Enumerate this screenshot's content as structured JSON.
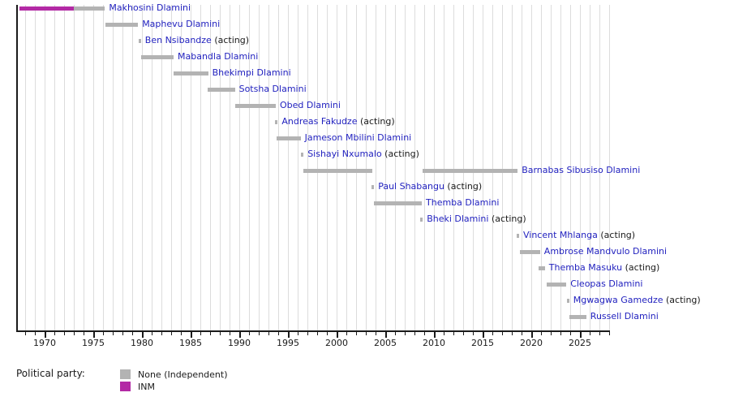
{
  "chart_data": {
    "type": "timeline",
    "description_visible_text_only": true,
    "axis": {
      "unit": "year",
      "start": 1967.17,
      "end": 2028.08,
      "minor_tick_step": 1,
      "major_ticks": [
        1970,
        1975,
        1980,
        1985,
        1990,
        1995,
        2000,
        2005,
        2010,
        2015,
        2020,
        2025
      ],
      "gridlines": true
    },
    "colors": {
      "link": "#2222bf",
      "axis_text": "#1a1a1a",
      "grid": "#dcdcdc"
    },
    "parties": {
      "none": {
        "label": "None (Independent)",
        "color": "#b3b3b3"
      },
      "inm": {
        "label": "INM",
        "color": "#b32aa5"
      }
    },
    "rows": [
      {
        "name": "Makhosini Dlamini",
        "suffix": "",
        "segments": [
          {
            "start": 1967.45,
            "end": 1973.0,
            "party": "inm"
          },
          {
            "start": 1973.0,
            "end": 1976.2,
            "party": "none"
          }
        ]
      },
      {
        "name": "Maphevu Dlamini",
        "suffix": "",
        "segments": [
          {
            "start": 1976.25,
            "end": 1979.6,
            "party": "none"
          }
        ]
      },
      {
        "name": "Ben Nsibandze",
        "suffix": "(acting)",
        "segments": [
          {
            "start": 1979.63,
            "end": 1979.9,
            "party": "none"
          }
        ]
      },
      {
        "name": "Mabandla Dlamini",
        "suffix": "",
        "segments": [
          {
            "start": 1979.9,
            "end": 1983.25,
            "party": "none"
          }
        ]
      },
      {
        "name": "Bhekimpi Dlamini",
        "suffix": "",
        "segments": [
          {
            "start": 1983.25,
            "end": 1986.8,
            "party": "none"
          }
        ]
      },
      {
        "name": "Sotsha Dlamini",
        "suffix": "",
        "segments": [
          {
            "start": 1986.75,
            "end": 1989.55,
            "party": "none"
          }
        ]
      },
      {
        "name": "Obed Dlamini",
        "suffix": "",
        "segments": [
          {
            "start": 1989.55,
            "end": 1993.75,
            "party": "none"
          }
        ]
      },
      {
        "name": "Andreas Fakudze",
        "suffix": "(acting)",
        "segments": [
          {
            "start": 1993.7,
            "end": 1993.95,
            "party": "none"
          }
        ]
      },
      {
        "name": "Jameson Mbilini Dlamini",
        "suffix": "",
        "segments": [
          {
            "start": 1993.85,
            "end": 1996.3,
            "party": "none"
          }
        ]
      },
      {
        "name": "Sishayi Nxumalo",
        "suffix": "(acting)",
        "segments": [
          {
            "start": 1996.35,
            "end": 1996.6,
            "party": "none"
          }
        ]
      },
      {
        "name": "Barnabas Sibusiso Dlamini",
        "suffix": "",
        "segments": [
          {
            "start": 1996.55,
            "end": 2003.7,
            "party": "none"
          },
          {
            "start": 2008.8,
            "end": 2018.6,
            "party": "none"
          }
        ]
      },
      {
        "name": "Paul Shabangu",
        "suffix": "(acting)",
        "segments": [
          {
            "start": 2003.6,
            "end": 2003.85,
            "party": "none"
          }
        ]
      },
      {
        "name": "Themba Dlamini",
        "suffix": "",
        "segments": [
          {
            "start": 2003.85,
            "end": 2008.75,
            "party": "none"
          }
        ]
      },
      {
        "name": "Bheki Dlamini",
        "suffix": "(acting)",
        "segments": [
          {
            "start": 2008.6,
            "end": 2008.85,
            "party": "none"
          }
        ]
      },
      {
        "name": "Vincent Mhlanga",
        "suffix": "(acting)",
        "segments": [
          {
            "start": 2018.5,
            "end": 2018.75,
            "party": "none"
          }
        ]
      },
      {
        "name": "Ambrose Mandvulo Dlamini",
        "suffix": "",
        "segments": [
          {
            "start": 2018.8,
            "end": 2020.9,
            "party": "none"
          }
        ]
      },
      {
        "name": "Themba Masuku",
        "suffix": "(acting)",
        "segments": [
          {
            "start": 2020.75,
            "end": 2021.4,
            "party": "none"
          }
        ]
      },
      {
        "name": "Cleopas Dlamini",
        "suffix": "",
        "segments": [
          {
            "start": 2021.55,
            "end": 2023.6,
            "party": "none"
          }
        ]
      },
      {
        "name": "Mgwagwa Gamedze",
        "suffix": "(acting)",
        "segments": [
          {
            "start": 2023.65,
            "end": 2023.9,
            "party": "none"
          }
        ]
      },
      {
        "name": "Russell Dlamini",
        "suffix": "",
        "segments": [
          {
            "start": 2023.9,
            "end": 2025.65,
            "party": "none"
          }
        ]
      }
    ],
    "legend": {
      "title": "Political party:",
      "entries": [
        {
          "party": "none",
          "label": "None (Independent)"
        },
        {
          "party": "inm",
          "label": "INM"
        }
      ]
    }
  }
}
